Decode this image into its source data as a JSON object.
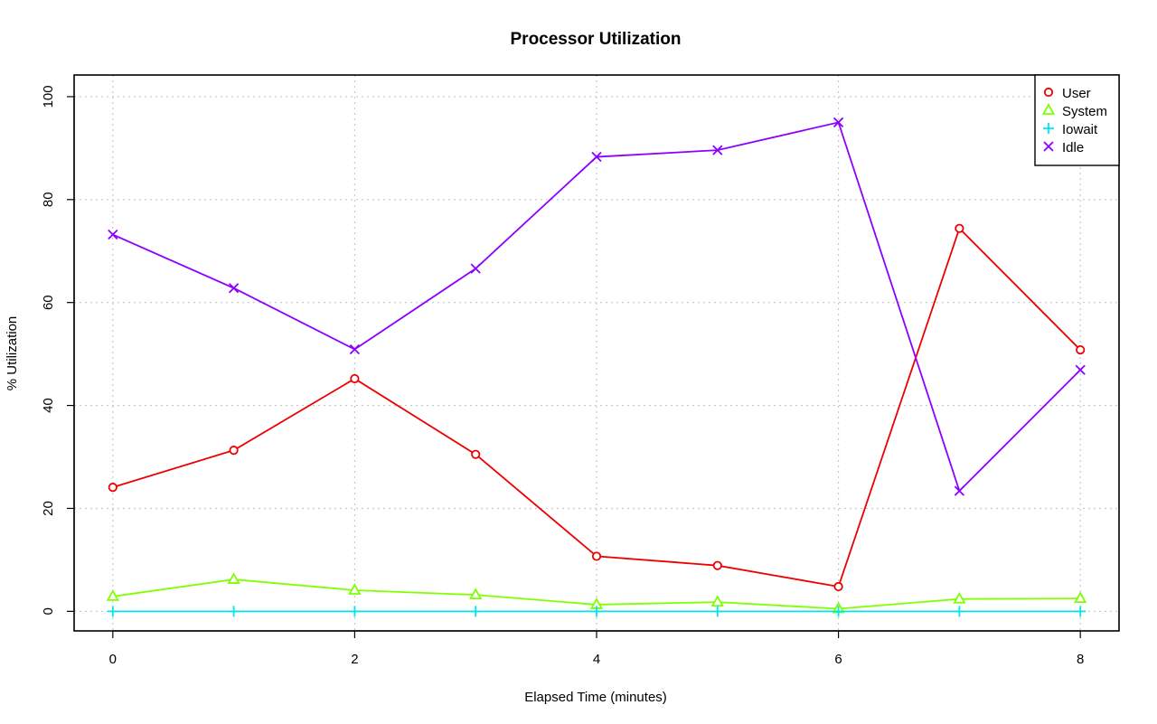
{
  "chart_data": {
    "type": "line",
    "title": "Processor Utilization",
    "xlabel": "Elapsed Time (minutes)",
    "ylabel": "% Utilization",
    "xlim": [
      -0.32,
      8.32
    ],
    "ylim": [
      -3.8,
      104.2
    ],
    "x_ticks": [
      0,
      2,
      4,
      6,
      8
    ],
    "y_ticks": [
      0,
      20,
      40,
      60,
      80,
      100
    ],
    "grid": true,
    "legend_position": "top-right",
    "x": [
      0,
      1,
      2,
      3,
      4,
      5,
      6,
      7,
      8
    ],
    "series": [
      {
        "name": "User",
        "color": "#ee0000",
        "marker": "circle",
        "values": [
          24.1,
          31.3,
          45.2,
          30.5,
          10.7,
          8.9,
          4.8,
          74.4,
          50.8
        ]
      },
      {
        "name": "System",
        "color": "#7fff00",
        "marker": "triangle",
        "values": [
          2.9,
          6.2,
          4.1,
          3.2,
          1.3,
          1.8,
          0.5,
          2.4,
          2.5
        ]
      },
      {
        "name": "Iowait",
        "color": "#00e5ee",
        "marker": "plus",
        "values": [
          0,
          0,
          0,
          0,
          0,
          0,
          0,
          0,
          0
        ]
      },
      {
        "name": "Idle",
        "color": "#8b00ff",
        "marker": "cross",
        "values": [
          73.2,
          62.8,
          50.9,
          66.6,
          88.3,
          89.6,
          95.0,
          23.4,
          46.9
        ]
      }
    ]
  }
}
